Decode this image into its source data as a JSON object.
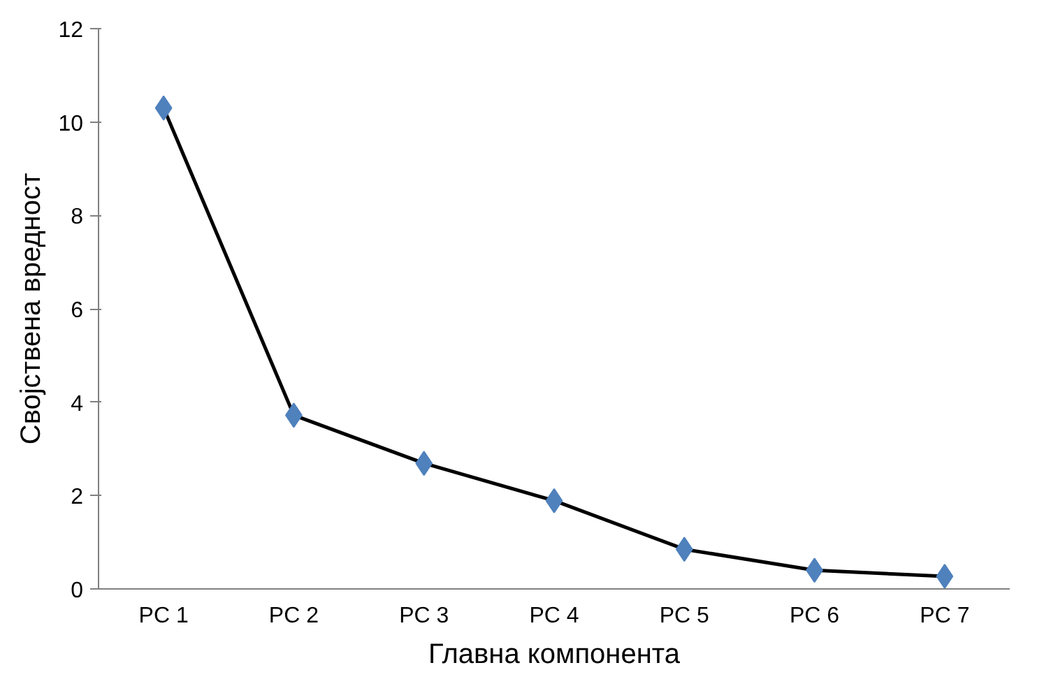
{
  "chart_data": {
    "type": "line",
    "xlabel": "Главна компонента",
    "ylabel": "Својствена вредност",
    "categories": [
      "PC 1",
      "PC 2",
      "PC 3",
      "PC 4",
      "PC 5",
      "PC 6",
      "PC 7"
    ],
    "series": [
      {
        "color": "#4f81bd",
        "values": [
          10.3,
          3.72,
          2.69,
          1.89,
          0.85,
          0.4,
          0.27
        ]
      }
    ],
    "ylim": [
      0,
      12
    ],
    "yticks": [
      0,
      2,
      4,
      6,
      8,
      10,
      12
    ],
    "grid": false,
    "marker": "diamond",
    "line_style": "solid"
  }
}
